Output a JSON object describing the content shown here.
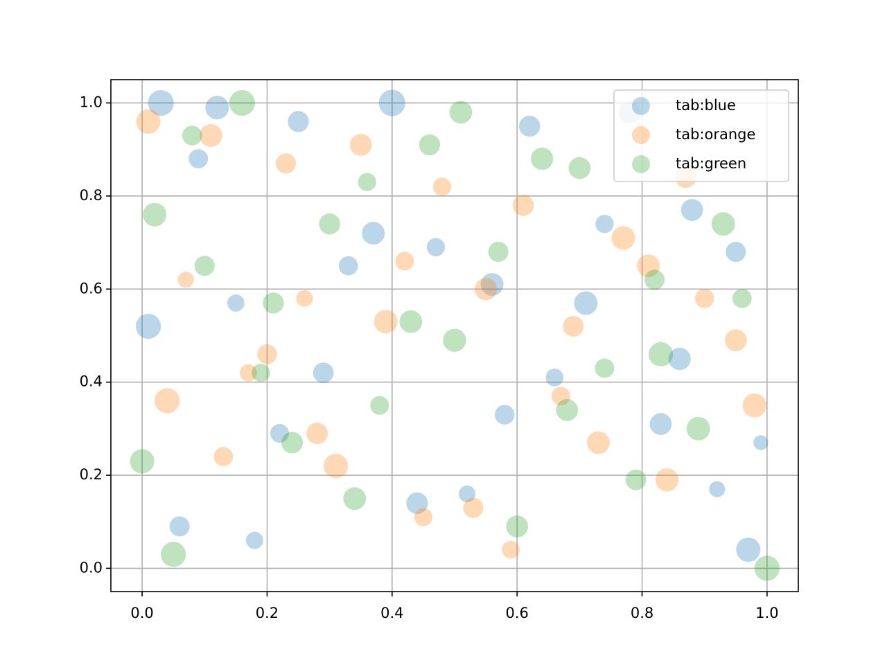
{
  "chart_data": {
    "type": "scatter",
    "xlim": [
      -0.05,
      1.05
    ],
    "ylim": [
      -0.05,
      1.05
    ],
    "xticks": [
      {
        "value": 0,
        "label": "0.0"
      },
      {
        "value": 0.2,
        "label": "0.2"
      },
      {
        "value": 0.4,
        "label": "0.4"
      },
      {
        "value": 0.6,
        "label": "0.6"
      },
      {
        "value": 0.8,
        "label": "0.8"
      },
      {
        "value": 1,
        "label": "1.0"
      }
    ],
    "yticks": [
      {
        "value": 0,
        "label": "0.0"
      },
      {
        "value": 0.2,
        "label": "0.2"
      },
      {
        "value": 0.4,
        "label": "0.4"
      },
      {
        "value": 0.6,
        "label": "0.6"
      },
      {
        "value": 0.8,
        "label": "0.8"
      },
      {
        "value": 1,
        "label": "1.0"
      }
    ],
    "grid": true,
    "legend": "upper right",
    "alpha": 0.3,
    "series": [
      {
        "name": "tab:blue",
        "color": "#1f77b4",
        "x": [
          0.03,
          0.12,
          0.25,
          0.4,
          0.56,
          0.78,
          0.95,
          0.01,
          0.18,
          0.33,
          0.47,
          0.62,
          0.71,
          0.88,
          0.99,
          0.06,
          0.22,
          0.37,
          0.52,
          0.66,
          0.83,
          0.92,
          0.09,
          0.29,
          0.44,
          0.58,
          0.74,
          0.86,
          0.97,
          0.15
        ],
        "values": [
          1.0,
          0.99,
          0.96,
          1.0,
          0.61,
          0.98,
          0.68,
          0.52,
          0.06,
          0.65,
          0.69,
          0.95,
          0.57,
          0.77,
          0.27,
          0.09,
          0.29,
          0.72,
          0.16,
          0.41,
          0.31,
          0.17,
          0.88,
          0.42,
          0.14,
          0.33,
          0.74,
          0.45,
          0.04,
          0.57
        ],
        "sizes": [
          180,
          150,
          120,
          190,
          140,
          130,
          110,
          170,
          80,
          100,
          90,
          120,
          150,
          130,
          60,
          110,
          95,
          140,
          75,
          85,
          130,
          70,
          100,
          115,
          125,
          105,
          90,
          135,
          160,
          80
        ]
      },
      {
        "name": "tab:orange",
        "color": "#ff7f0e",
        "x": [
          0.01,
          0.11,
          0.23,
          0.35,
          0.48,
          0.61,
          0.77,
          0.9,
          0.04,
          0.17,
          0.28,
          0.42,
          0.55,
          0.69,
          0.84,
          0.98,
          0.07,
          0.2,
          0.31,
          0.45,
          0.59,
          0.73,
          0.87,
          0.95,
          0.13,
          0.26,
          0.39,
          0.53,
          0.67,
          0.81
        ],
        "values": [
          0.96,
          0.93,
          0.87,
          0.91,
          0.82,
          0.78,
          0.71,
          0.58,
          0.36,
          0.42,
          0.29,
          0.66,
          0.6,
          0.52,
          0.19,
          0.35,
          0.62,
          0.46,
          0.22,
          0.11,
          0.04,
          0.27,
          0.84,
          0.49,
          0.24,
          0.58,
          0.53,
          0.13,
          0.37,
          0.65
        ],
        "sizes": [
          160,
          140,
          110,
          130,
          90,
          120,
          150,
          100,
          170,
          80,
          125,
          95,
          135,
          115,
          145,
          155,
          70,
          105,
          160,
          90,
          85,
          140,
          120,
          130,
          100,
          75,
          150,
          110,
          95,
          140
        ]
      },
      {
        "name": "tab:green",
        "color": "#2ca02c",
        "x": [
          0.02,
          0.16,
          0.3,
          0.43,
          0.57,
          0.7,
          0.83,
          0.96,
          0.05,
          0.19,
          0.34,
          0.46,
          0.6,
          0.74,
          0.89,
          0.0,
          0.1,
          0.24,
          0.38,
          0.5,
          0.64,
          0.79,
          0.93,
          0.08,
          0.21,
          0.36,
          0.51,
          0.68,
          0.82,
          1.0
        ],
        "values": [
          0.76,
          1.0,
          0.74,
          0.53,
          0.68,
          0.86,
          0.46,
          0.58,
          0.03,
          0.42,
          0.15,
          0.91,
          0.09,
          0.43,
          0.3,
          0.23,
          0.65,
          0.27,
          0.35,
          0.49,
          0.88,
          0.19,
          0.74,
          0.93,
          0.57,
          0.83,
          0.98,
          0.34,
          0.62,
          0.0
        ],
        "sizes": [
          150,
          180,
          120,
          140,
          110,
          130,
          160,
          100,
          170,
          90,
          140,
          120,
          130,
          100,
          150,
          160,
          110,
          125,
          95,
          145,
          135,
          115,
          150,
          105,
          120,
          90,
          140,
          130,
          110,
          170
        ]
      }
    ]
  }
}
